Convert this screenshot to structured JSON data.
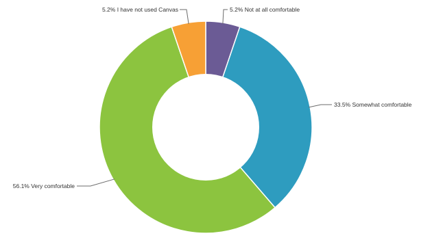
{
  "chart_data": {
    "type": "pie",
    "variant": "donut",
    "title": "",
    "slices": [
      {
        "label": "Not at all comfortable",
        "value": 5.2,
        "display": "5.2% Not at all comfortable",
        "color": "#6b5b95"
      },
      {
        "label": "Somewhat comfortable",
        "value": 33.5,
        "display": "33.5% Somewhat comfortable",
        "color": "#2e9cbf"
      },
      {
        "label": "Very comfortable",
        "value": 56.1,
        "display": "56.1% Very comfortable",
        "color": "#8cc43f"
      },
      {
        "label": "I have not used Canvas",
        "value": 5.2,
        "display": "5.2% I have not used Canvas",
        "color": "#f7a035"
      }
    ],
    "start_angle_deg": 0,
    "direction": "clockwise",
    "legend": "none",
    "labels": "outside-callouts"
  }
}
